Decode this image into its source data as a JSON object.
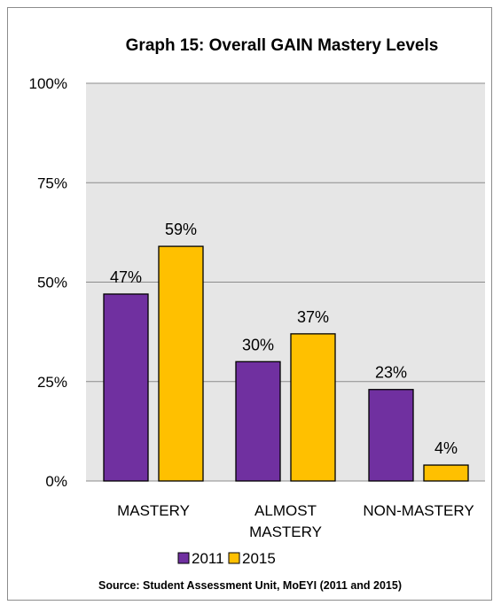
{
  "chart_data": {
    "type": "bar",
    "title": "Graph 15: Overall GAIN Mastery Levels",
    "categories": [
      [
        "MASTERY"
      ],
      [
        "ALMOST",
        "MASTERY"
      ],
      [
        "NON-MASTERY"
      ]
    ],
    "series": [
      {
        "name": "2011",
        "values": [
          47,
          30,
          23
        ],
        "labels": [
          "47%",
          "30%",
          "23%"
        ],
        "color": "#7030a0"
      },
      {
        "name": "2015",
        "values": [
          59,
          37,
          4
        ],
        "labels": [
          "59%",
          "37%",
          "4%"
        ],
        "color": "#ffc000"
      }
    ],
    "ylim": [
      0,
      100
    ],
    "yticks": [
      0,
      25,
      50,
      75,
      100
    ],
    "ytick_labels": [
      "0%",
      "25%",
      "50%",
      "75%",
      "100%"
    ],
    "grid": true,
    "plot_background": "#e6e6e6",
    "legend_position": "bottom",
    "source": "Source:  Student Assessment Unit, MoEYI (2011 and 2015)"
  }
}
